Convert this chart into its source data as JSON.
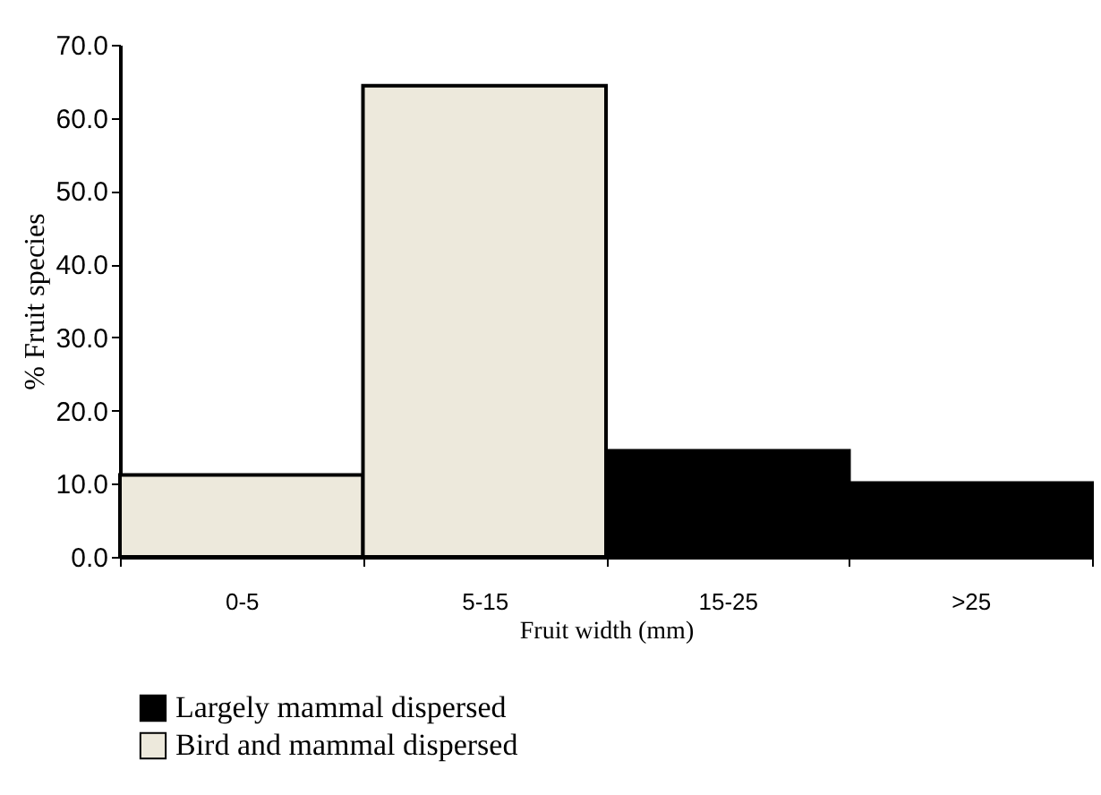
{
  "chart_data": {
    "type": "bar",
    "xlabel": "Fruit width (mm)",
    "ylabel": "% Fruit species",
    "categories": [
      "0-5",
      "5-15",
      "15-25",
      ">25"
    ],
    "series": [
      {
        "name": "Largely mammal dispersed",
        "color": "#000000",
        "values": [
          null,
          null,
          14.5,
          10.1
        ]
      },
      {
        "name": "Bird and mammal dispersed",
        "color": "#ede9dc",
        "values": [
          11.2,
          64.4,
          null,
          null
        ]
      }
    ],
    "ylim": [
      0,
      70
    ],
    "yticks": [
      {
        "value": 0,
        "label": "0.0"
      },
      {
        "value": 10,
        "label": "10.0"
      },
      {
        "value": 20,
        "label": "20.0"
      },
      {
        "value": 30,
        "label": "30.0"
      },
      {
        "value": 40,
        "label": "40.0"
      },
      {
        "value": 50,
        "label": "50.0"
      },
      {
        "value": 60,
        "label": "60.0"
      },
      {
        "value": 70,
        "label": "70.0"
      }
    ],
    "grid": false,
    "legend": "bottom"
  }
}
